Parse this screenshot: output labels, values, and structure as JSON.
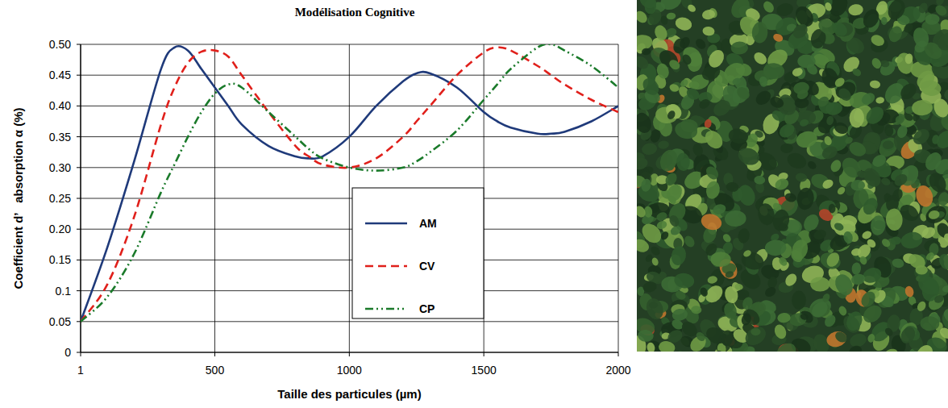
{
  "chart_data": {
    "type": "line",
    "title": "Modélisation Cognitive",
    "x_label": "Taille des particules (µm)",
    "y_label": "Coefficient d’   absorption α (%)",
    "x": [
      1,
      100,
      200,
      300,
      350,
      400,
      450,
      500,
      550,
      600,
      700,
      800,
      850,
      900,
      1000,
      1100,
      1200,
      1250,
      1300,
      1400,
      1500,
      1550,
      1600,
      1700,
      1750,
      1800,
      1900,
      2000
    ],
    "series": [
      {
        "name": "AM",
        "color": "#1f3a7a",
        "line_style": "solid",
        "values": [
          0.05,
          0.17,
          0.31,
          0.46,
          0.495,
          0.49,
          0.46,
          0.43,
          0.4,
          0.37,
          0.335,
          0.318,
          0.315,
          0.318,
          0.35,
          0.4,
          0.44,
          0.453,
          0.453,
          0.43,
          0.39,
          0.375,
          0.365,
          0.355,
          0.355,
          0.358,
          0.375,
          0.4
        ]
      },
      {
        "name": "CV",
        "color": "#e0201b",
        "line_style": "dashed",
        "values": [
          0.05,
          0.11,
          0.22,
          0.37,
          0.43,
          0.47,
          0.488,
          0.49,
          0.48,
          0.45,
          0.39,
          0.335,
          0.318,
          0.305,
          0.3,
          0.315,
          0.35,
          0.375,
          0.4,
          0.45,
          0.487,
          0.495,
          0.49,
          0.465,
          0.45,
          0.435,
          0.41,
          0.39
        ]
      },
      {
        "name": "CP",
        "color": "#1a7a2a",
        "line_style": "dashdot",
        "values": [
          0.05,
          0.09,
          0.16,
          0.26,
          0.305,
          0.35,
          0.39,
          0.42,
          0.435,
          0.43,
          0.39,
          0.35,
          0.33,
          0.315,
          0.3,
          0.295,
          0.3,
          0.31,
          0.325,
          0.36,
          0.41,
          0.435,
          0.46,
          0.495,
          0.5,
          0.49,
          0.465,
          0.43
        ]
      }
    ],
    "xlim": [
      1,
      2000
    ],
    "xticks": [
      1,
      500,
      1000,
      1500,
      2000
    ],
    "ylim": [
      0,
      0.5
    ],
    "yticks": [
      0,
      0.05,
      0.1,
      0.15,
      {
        "value": 0.2,
        "label": "0.20"
      },
      0.25,
      {
        "value": 0.3,
        "label": "0.30"
      },
      0.35,
      {
        "value": 0.4,
        "label": "0.40"
      },
      0.45,
      {
        "value": 0.5,
        "label": "0.50"
      }
    ],
    "grid": true,
    "legend": "center"
  }
}
